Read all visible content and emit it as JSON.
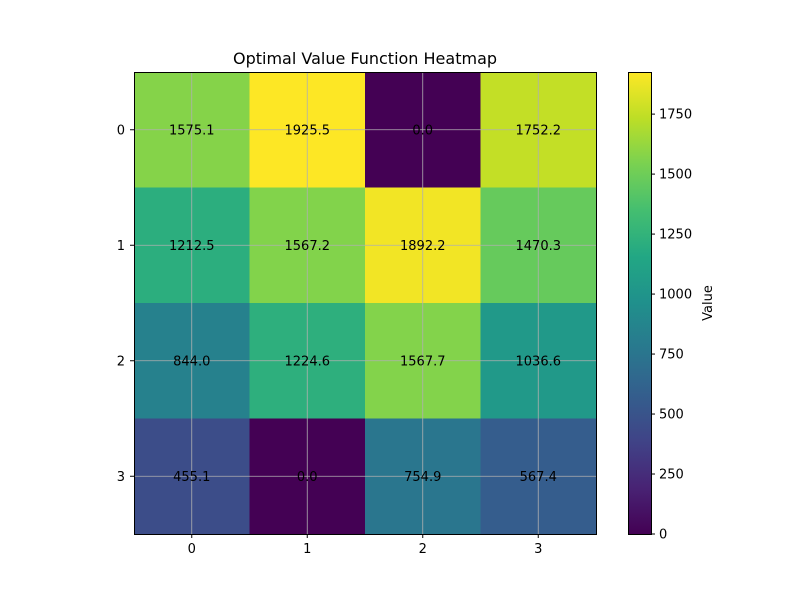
{
  "chart_data": {
    "type": "heatmap",
    "title": "Optimal Value Function Heatmap",
    "x_ticks": [
      "0",
      "1",
      "2",
      "3"
    ],
    "y_ticks": [
      "0",
      "1",
      "2",
      "3"
    ],
    "values": [
      [
        1575.1,
        1925.5,
        0.0,
        1752.2
      ],
      [
        1212.5,
        1567.2,
        1892.2,
        1470.3
      ],
      [
        844.0,
        1224.6,
        1567.7,
        1036.6
      ],
      [
        455.1,
        0.0,
        754.9,
        567.4
      ]
    ],
    "cell_labels": [
      [
        "1575.1",
        "1925.5",
        "0.0",
        "1752.2"
      ],
      [
        "1212.5",
        "1567.2",
        "1892.2",
        "1470.3"
      ],
      [
        "844.0",
        "1224.6",
        "1567.7",
        "1036.6"
      ],
      [
        "455.1",
        "0.0",
        "754.9",
        "567.4"
      ]
    ],
    "colormap": "viridis",
    "vmin": 0,
    "vmax": 1925.5,
    "grid": true,
    "colorbar": {
      "label": "Value",
      "ticks": [
        0,
        250,
        500,
        750,
        1000,
        1250,
        1500,
        1750
      ]
    }
  }
}
